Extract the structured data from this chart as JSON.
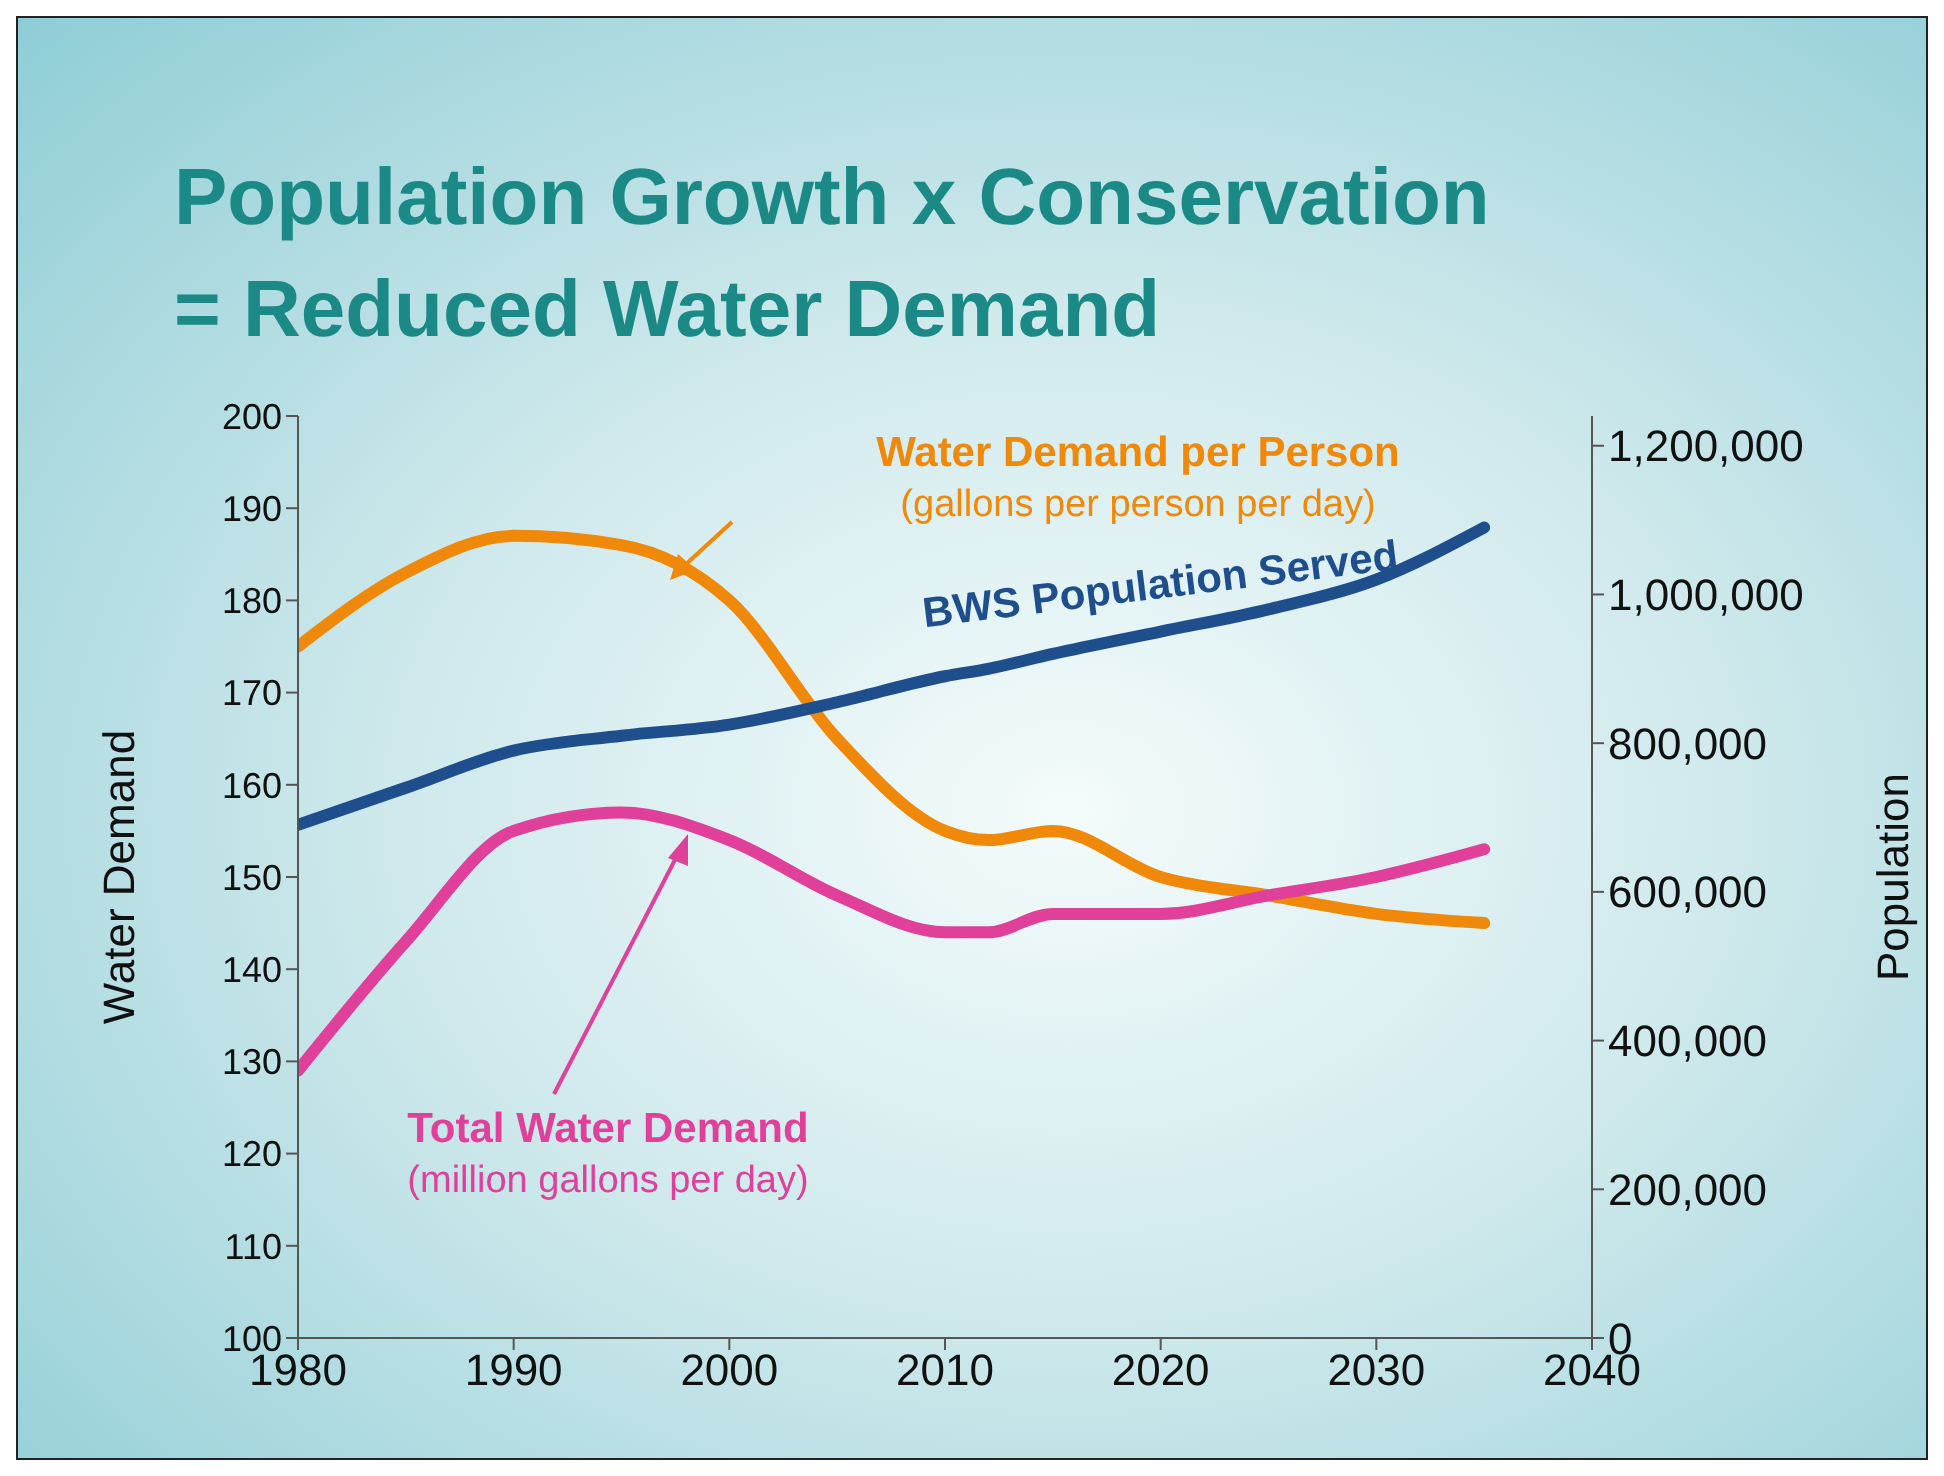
{
  "chart_data": {
    "type": "line",
    "title": "Population Growth x Conservation\n= Reduced Water Demand",
    "xlabel": null,
    "ylabel": "Water Demand",
    "y2label": "Population",
    "x": [
      1980,
      1985,
      1990,
      1995,
      2000,
      2005,
      2010,
      2012,
      2015,
      2020,
      2025,
      2030,
      2035
    ],
    "series": [
      {
        "name": "Water Demand per Person",
        "color": "#f0880a",
        "values": [
          175,
          183,
          187,
          186,
          180,
          165,
          155,
          154,
          155,
          150,
          148,
          146,
          145
        ]
      },
      {
        "name": "BWS Population Served",
        "color": "#1f4e8c",
        "axis": "y2",
        "values": [
          690000,
          740000,
          790000,
          810000,
          825000,
          855000,
          890000,
          900000,
          920000,
          950000,
          980000,
          1020000,
          1090000
        ]
      },
      {
        "name": "Total Water Demand",
        "color": "#e0409a",
        "values": [
          129,
          143,
          155,
          157,
          154,
          148,
          144,
          144,
          146,
          146,
          148,
          150,
          153
        ]
      }
    ],
    "annotations": [
      "(gallons per person per day)",
      "(million gallons per day)"
    ],
    "xlim": [
      1980,
      2040
    ],
    "xticks": [
      1980,
      1990,
      2000,
      2010,
      2020,
      2030,
      2040
    ],
    "ylim": [
      100,
      200
    ],
    "yticks": [
      100,
      110,
      120,
      130,
      140,
      150,
      160,
      170,
      180,
      190,
      200
    ],
    "y2lim": [
      0,
      1240000
    ],
    "y2ticks": [
      0,
      {
        "value": 200000,
        "label": "200,000"
      },
      {
        "value": 400000,
        "label": "400,000"
      },
      {
        "value": 600000,
        "label": "600,000"
      },
      {
        "value": 800000,
        "label": "800,000"
      },
      {
        "value": 1000000,
        "label": "1,000,000"
      },
      {
        "value": 1200000,
        "label": "1,200,000"
      }
    ],
    "legend": false,
    "grid": false
  }
}
